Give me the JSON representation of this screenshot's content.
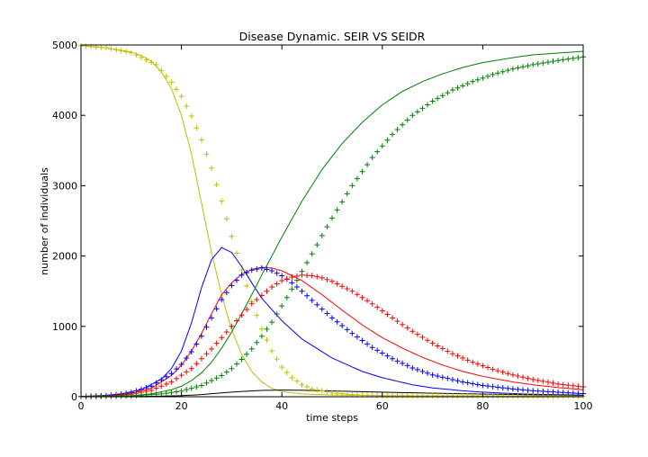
{
  "chart_data": {
    "type": "line",
    "title": "Disease Dynamic. SEIR VS SEIDR",
    "xlabel": "time steps",
    "ylabel": "number of individuals",
    "xlim": [
      0,
      100
    ],
    "ylim": [
      0,
      5000
    ],
    "xticks": [
      0,
      20,
      40,
      60,
      80,
      100
    ],
    "yticks": [
      0,
      1000,
      2000,
      3000,
      4000,
      5000
    ],
    "grid": false,
    "legend": "none",
    "series": [
      {
        "color": "#bfbf00",
        "style": "line",
        "points": [
          [
            0,
            4990
          ],
          [
            5,
            4960
          ],
          [
            10,
            4900
          ],
          [
            12,
            4850
          ],
          [
            14,
            4770
          ],
          [
            16,
            4620
          ],
          [
            18,
            4380
          ],
          [
            20,
            4000
          ],
          [
            22,
            3450
          ],
          [
            24,
            2750
          ],
          [
            26,
            2050
          ],
          [
            28,
            1450
          ],
          [
            30,
            950
          ],
          [
            32,
            600
          ],
          [
            34,
            360
          ],
          [
            36,
            210
          ],
          [
            38,
            120
          ],
          [
            40,
            75
          ],
          [
            44,
            40
          ],
          [
            50,
            25
          ],
          [
            60,
            15
          ],
          [
            80,
            10
          ],
          [
            100,
            8
          ]
        ]
      },
      {
        "color": "#0000ff",
        "style": "line",
        "points": [
          [
            0,
            5
          ],
          [
            4,
            15
          ],
          [
            8,
            40
          ],
          [
            12,
            100
          ],
          [
            16,
            250
          ],
          [
            18,
            400
          ],
          [
            20,
            650
          ],
          [
            22,
            1050
          ],
          [
            24,
            1550
          ],
          [
            26,
            1950
          ],
          [
            28,
            2120
          ],
          [
            30,
            2050
          ],
          [
            32,
            1850
          ],
          [
            34,
            1620
          ],
          [
            36,
            1400
          ],
          [
            40,
            1080
          ],
          [
            44,
            820
          ],
          [
            50,
            550
          ],
          [
            56,
            360
          ],
          [
            60,
            270
          ],
          [
            66,
            170
          ],
          [
            70,
            125
          ],
          [
            76,
            85
          ],
          [
            80,
            65
          ],
          [
            86,
            45
          ],
          [
            90,
            35
          ],
          [
            100,
            22
          ]
        ]
      },
      {
        "color": "#ff0000",
        "style": "line",
        "points": [
          [
            0,
            3
          ],
          [
            6,
            15
          ],
          [
            10,
            45
          ],
          [
            14,
            120
          ],
          [
            18,
            300
          ],
          [
            20,
            450
          ],
          [
            22,
            650
          ],
          [
            24,
            900
          ],
          [
            26,
            1180
          ],
          [
            28,
            1450
          ],
          [
            30,
            1620
          ],
          [
            32,
            1740
          ],
          [
            34,
            1810
          ],
          [
            36,
            1840
          ],
          [
            38,
            1830
          ],
          [
            40,
            1790
          ],
          [
            44,
            1650
          ],
          [
            48,
            1450
          ],
          [
            52,
            1230
          ],
          [
            56,
            1020
          ],
          [
            60,
            840
          ],
          [
            64,
            690
          ],
          [
            68,
            560
          ],
          [
            72,
            450
          ],
          [
            76,
            360
          ],
          [
            80,
            290
          ],
          [
            86,
            210
          ],
          [
            90,
            170
          ],
          [
            95,
            130
          ],
          [
            100,
            100
          ]
        ]
      },
      {
        "color": "#007f00",
        "style": "line",
        "points": [
          [
            0,
            0
          ],
          [
            10,
            15
          ],
          [
            14,
            40
          ],
          [
            18,
            100
          ],
          [
            20,
            150
          ],
          [
            22,
            230
          ],
          [
            24,
            340
          ],
          [
            26,
            490
          ],
          [
            28,
            690
          ],
          [
            30,
            920
          ],
          [
            32,
            1180
          ],
          [
            34,
            1450
          ],
          [
            36,
            1730
          ],
          [
            38,
            2000
          ],
          [
            40,
            2270
          ],
          [
            44,
            2780
          ],
          [
            48,
            3230
          ],
          [
            52,
            3600
          ],
          [
            56,
            3900
          ],
          [
            60,
            4150
          ],
          [
            64,
            4340
          ],
          [
            68,
            4480
          ],
          [
            72,
            4590
          ],
          [
            76,
            4680
          ],
          [
            80,
            4750
          ],
          [
            86,
            4820
          ],
          [
            90,
            4860
          ],
          [
            100,
            4910
          ]
        ]
      },
      {
        "color": "#000000",
        "style": "line",
        "points": [
          [
            0,
            0
          ],
          [
            10,
            3
          ],
          [
            16,
            8
          ],
          [
            20,
            15
          ],
          [
            24,
            30
          ],
          [
            28,
            55
          ],
          [
            32,
            75
          ],
          [
            36,
            90
          ],
          [
            40,
            95
          ],
          [
            44,
            92
          ],
          [
            50,
            82
          ],
          [
            60,
            65
          ],
          [
            70,
            50
          ],
          [
            80,
            38
          ],
          [
            90,
            28
          ],
          [
            100,
            22
          ]
        ]
      },
      {
        "color": "#bfbf00",
        "style": "markers",
        "points": [
          [
            0,
            4990
          ],
          [
            5,
            4960
          ],
          [
            10,
            4890
          ],
          [
            15,
            4720
          ],
          [
            18,
            4470
          ],
          [
            20,
            4270
          ],
          [
            22,
            3990
          ],
          [
            24,
            3650
          ],
          [
            26,
            3250
          ],
          [
            28,
            2780
          ],
          [
            30,
            2280
          ],
          [
            32,
            1800
          ],
          [
            34,
            1350
          ],
          [
            36,
            960
          ],
          [
            38,
            650
          ],
          [
            40,
            420
          ],
          [
            42,
            270
          ],
          [
            44,
            170
          ],
          [
            46,
            110
          ],
          [
            50,
            55
          ],
          [
            55,
            25
          ],
          [
            60,
            15
          ],
          [
            80,
            10
          ],
          [
            100,
            8
          ]
        ]
      },
      {
        "color": "#0000ff",
        "style": "markers",
        "points": [
          [
            0,
            3
          ],
          [
            6,
            20
          ],
          [
            10,
            60
          ],
          [
            14,
            150
          ],
          [
            18,
            330
          ],
          [
            20,
            460
          ],
          [
            22,
            640
          ],
          [
            24,
            860
          ],
          [
            26,
            1120
          ],
          [
            28,
            1380
          ],
          [
            30,
            1580
          ],
          [
            32,
            1730
          ],
          [
            34,
            1800
          ],
          [
            36,
            1830
          ],
          [
            38,
            1790
          ],
          [
            40,
            1720
          ],
          [
            42,
            1620
          ],
          [
            44,
            1500
          ],
          [
            46,
            1370
          ],
          [
            50,
            1120
          ],
          [
            54,
            900
          ],
          [
            58,
            700
          ],
          [
            62,
            540
          ],
          [
            66,
            410
          ],
          [
            70,
            310
          ],
          [
            76,
            210
          ],
          [
            80,
            160
          ],
          [
            86,
            110
          ],
          [
            90,
            85
          ],
          [
            96,
            60
          ],
          [
            100,
            45
          ]
        ]
      },
      {
        "color": "#ff0000",
        "style": "markers",
        "points": [
          [
            0,
            2
          ],
          [
            6,
            12
          ],
          [
            10,
            35
          ],
          [
            14,
            90
          ],
          [
            18,
            210
          ],
          [
            22,
            400
          ],
          [
            26,
            680
          ],
          [
            30,
            1000
          ],
          [
            34,
            1320
          ],
          [
            38,
            1560
          ],
          [
            40,
            1650
          ],
          [
            42,
            1700
          ],
          [
            44,
            1730
          ],
          [
            46,
            1720
          ],
          [
            48,
            1690
          ],
          [
            50,
            1640
          ],
          [
            54,
            1500
          ],
          [
            58,
            1320
          ],
          [
            62,
            1120
          ],
          [
            66,
            930
          ],
          [
            70,
            760
          ],
          [
            74,
            610
          ],
          [
            78,
            490
          ],
          [
            82,
            390
          ],
          [
            86,
            310
          ],
          [
            90,
            245
          ],
          [
            95,
            180
          ],
          [
            100,
            140
          ]
        ]
      },
      {
        "color": "#007f00",
        "style": "markers",
        "points": [
          [
            0,
            0
          ],
          [
            10,
            10
          ],
          [
            16,
            40
          ],
          [
            20,
            80
          ],
          [
            24,
            160
          ],
          [
            28,
            300
          ],
          [
            30,
            400
          ],
          [
            32,
            530
          ],
          [
            34,
            680
          ],
          [
            36,
            860
          ],
          [
            38,
            1060
          ],
          [
            40,
            1290
          ],
          [
            42,
            1530
          ],
          [
            44,
            1780
          ],
          [
            46,
            2030
          ],
          [
            48,
            2290
          ],
          [
            50,
            2540
          ],
          [
            54,
            3000
          ],
          [
            58,
            3400
          ],
          [
            62,
            3730
          ],
          [
            66,
            4000
          ],
          [
            70,
            4200
          ],
          [
            74,
            4360
          ],
          [
            78,
            4480
          ],
          [
            82,
            4580
          ],
          [
            86,
            4660
          ],
          [
            90,
            4720
          ],
          [
            95,
            4780
          ],
          [
            100,
            4830
          ]
        ]
      }
    ]
  }
}
